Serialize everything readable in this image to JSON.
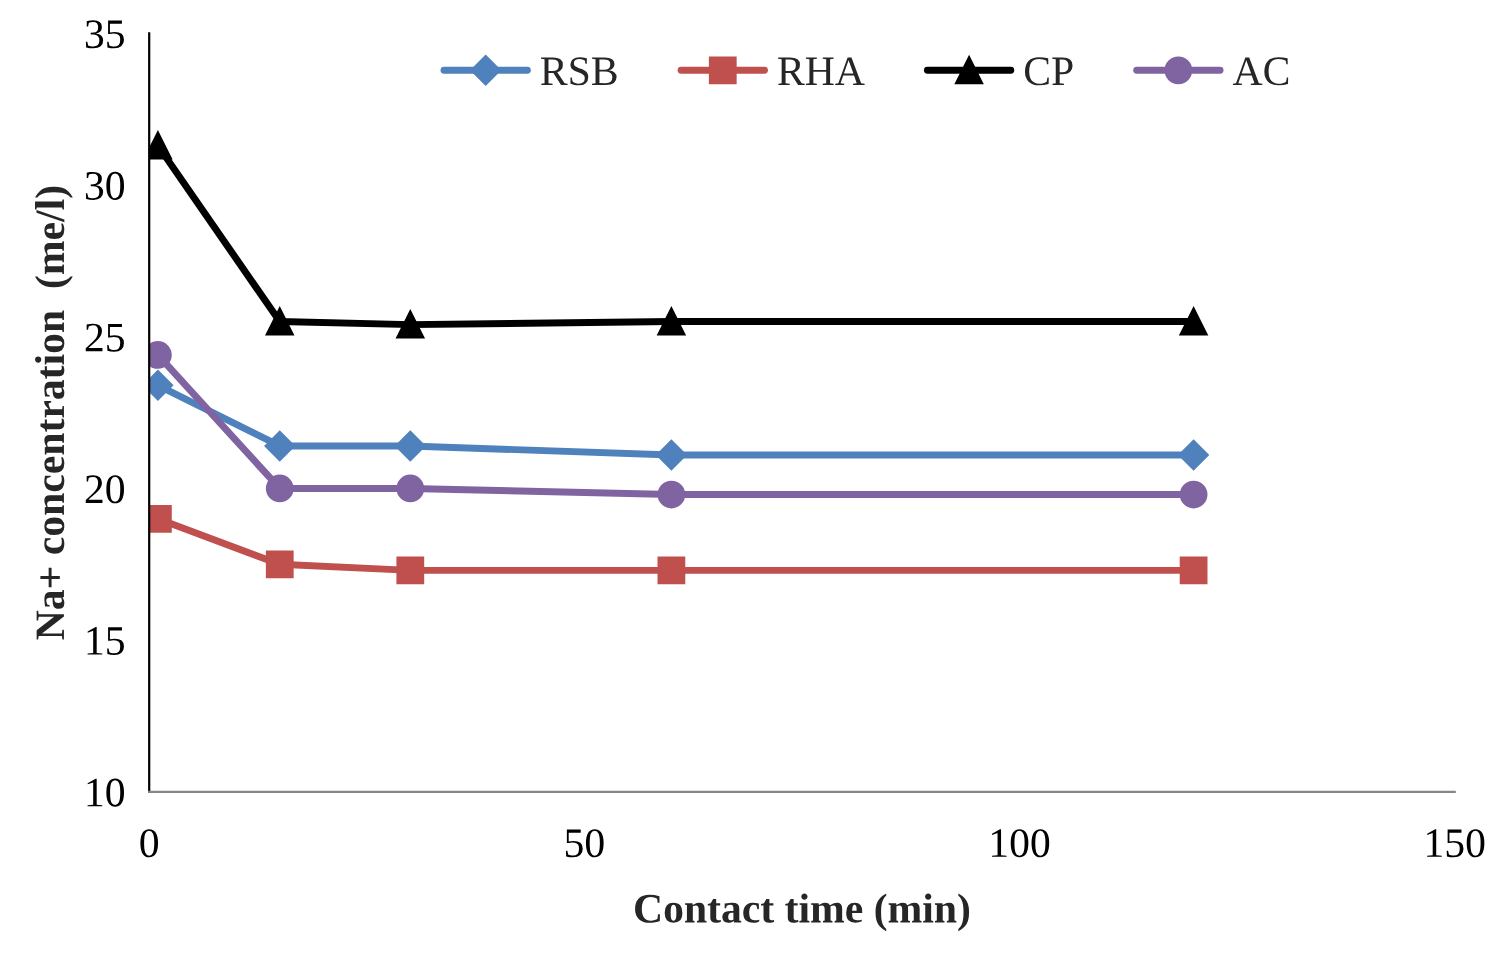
{
  "chart_data": {
    "type": "line",
    "xlabel": "Contact time (min)",
    "ylabel": "Na+ concentration  (me/l)",
    "x": [
      1,
      15,
      30,
      60,
      120
    ],
    "series": [
      {
        "name": "RSB",
        "color": "#4f81bd",
        "marker": "diamond",
        "values": [
          23.4,
          21.4,
          21.4,
          21.1,
          21.1
        ]
      },
      {
        "name": "RHA",
        "color": "#c0504d",
        "marker": "square",
        "values": [
          19.0,
          17.5,
          17.3,
          17.3,
          17.3
        ]
      },
      {
        "name": "CP",
        "color": "#000000",
        "marker": "triangle",
        "values": [
          31.3,
          25.5,
          25.4,
          25.5,
          25.5
        ]
      },
      {
        "name": "AC",
        "color": "#8064a2",
        "marker": "circle",
        "values": [
          24.4,
          20.0,
          20.0,
          19.8,
          19.8
        ]
      }
    ],
    "xlim": [
      0,
      150
    ],
    "xticks": [
      0,
      50,
      100,
      150
    ],
    "ylim": [
      10,
      35
    ],
    "yticks": [
      10,
      15,
      20,
      25,
      30,
      35
    ],
    "grid": false,
    "legend": "top",
    "line_style": "solid"
  }
}
